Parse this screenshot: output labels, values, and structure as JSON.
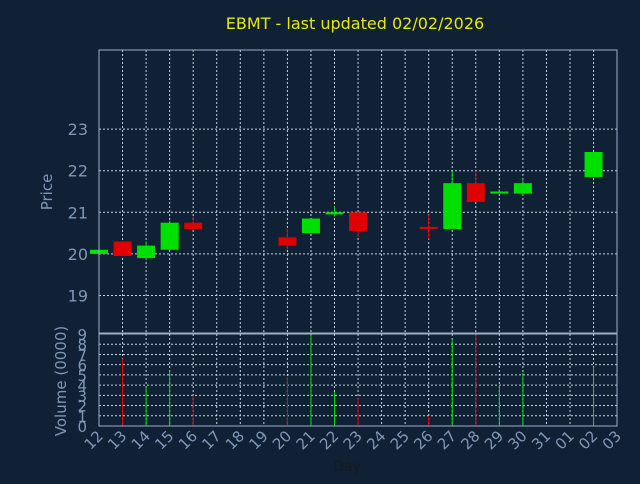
{
  "chart_data": {
    "type": "candlestick",
    "title": "EBMT - last updated 02/02/2026",
    "xlabel": "Day",
    "price_ylabel": "Price",
    "volume_ylabel": "Volume (0000)",
    "price_yticks": [
      "19",
      "20",
      "21",
      "22",
      "23"
    ],
    "volume_yticks": [
      "0",
      "1",
      "2",
      "3",
      "4",
      "5",
      "6",
      "7",
      "8",
      "9"
    ],
    "price_ylim": [
      18.1,
      24.9
    ],
    "volume_ylim": [
      0,
      9
    ],
    "x_tick_labels": [
      "12",
      "13",
      "14",
      "15",
      "16",
      "17",
      "18",
      "19",
      "20",
      "21",
      "22",
      "23",
      "24",
      "25",
      "26",
      "27",
      "28",
      "29",
      "30",
      "31",
      "01",
      "02",
      "03"
    ],
    "grid": true,
    "colors": {
      "background": "#102035",
      "plot_border": "#9ab0c8",
      "grid": "#c8d4e0",
      "title": "#e8e800",
      "axis_text": "#7f98b8",
      "up": "#00e000",
      "down": "#e00000"
    },
    "candles": [
      {
        "x": 12,
        "open": 20.0,
        "high": 20.1,
        "low": 20.0,
        "close": 20.1,
        "volume": 0
      },
      {
        "x": 13,
        "open": 20.3,
        "high": 20.3,
        "low": 19.95,
        "close": 19.95,
        "volume": 6.6
      },
      {
        "x": 14,
        "open": 19.9,
        "high": 20.3,
        "low": 19.85,
        "close": 20.2,
        "volume": 3.8
      },
      {
        "x": 15,
        "open": 20.1,
        "high": 20.8,
        "low": 20.1,
        "close": 20.75,
        "volume": 5.4
      },
      {
        "x": 16,
        "open": 20.75,
        "high": 20.9,
        "low": 20.6,
        "close": 20.6,
        "volume": 3.0
      },
      {
        "x": 20,
        "open": 20.4,
        "high": 20.6,
        "low": 20.1,
        "close": 20.2,
        "volume": 4.8
      },
      {
        "x": 21,
        "open": 20.5,
        "high": 20.85,
        "low": 20.5,
        "close": 20.85,
        "volume": 8.9
      },
      {
        "x": 22,
        "open": 20.95,
        "high": 21.15,
        "low": 20.9,
        "close": 21.0,
        "volume": 3.3
      },
      {
        "x": 23,
        "open": 21.0,
        "high": 21.0,
        "low": 20.4,
        "close": 20.55,
        "volume": 2.7
      },
      {
        "x": 26,
        "open": 20.65,
        "high": 20.95,
        "low": 20.35,
        "close": 20.6,
        "volume": 1.0
      },
      {
        "x": 27,
        "open": 20.6,
        "high": 22.0,
        "low": 20.6,
        "close": 21.7,
        "volume": 8.5
      },
      {
        "x": 28,
        "open": 21.7,
        "high": 22.0,
        "low": 21.25,
        "close": 21.25,
        "volume": 9.0
      },
      {
        "x": 29,
        "open": 21.45,
        "high": 21.55,
        "low": 21.45,
        "close": 21.5,
        "volume": 3.9
      },
      {
        "x": 30,
        "open": 21.45,
        "high": 21.8,
        "low": 21.4,
        "close": 21.7,
        "volume": 5.2
      },
      {
        "x": 33,
        "open": 21.85,
        "high": 22.45,
        "low": 21.85,
        "close": 22.45,
        "volume": 5.8
      }
    ]
  }
}
